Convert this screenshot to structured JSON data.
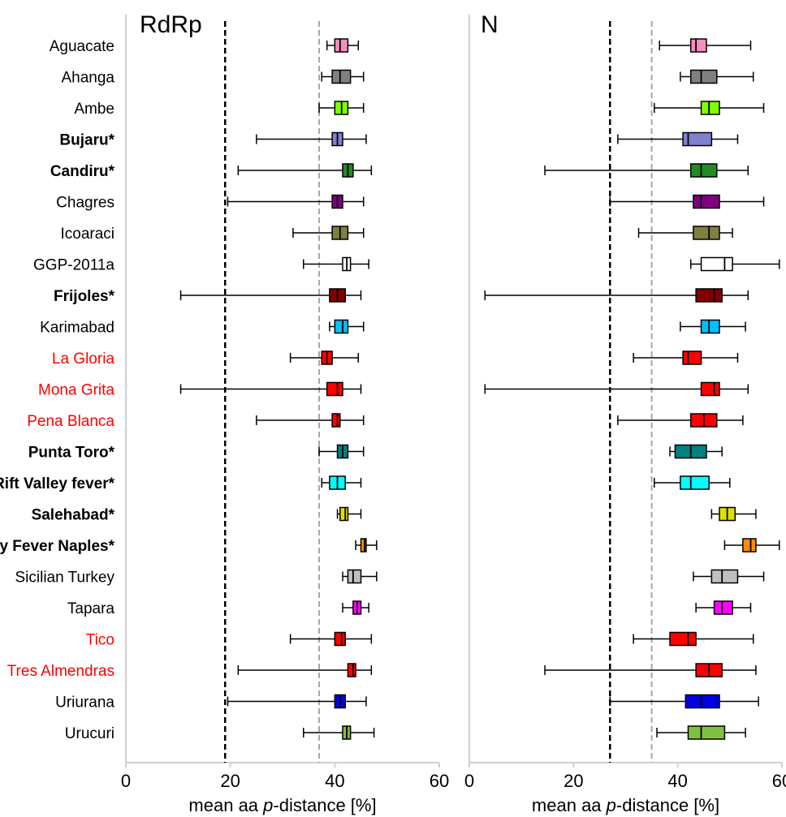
{
  "chart_data": [
    {
      "type": "boxplot",
      "title": "RdRp",
      "xlabel": "mean aa p-distance [%]",
      "xlabel_parts": [
        "mean aa ",
        "p",
        "-distance [%]"
      ],
      "xlim": [
        0,
        60
      ],
      "xticks": [
        "0",
        "20",
        "40",
        "60"
      ],
      "reference_lines": [
        {
          "x": 19,
          "style": "dashed",
          "color": "#000000"
        },
        {
          "x": 37,
          "style": "dashed",
          "color": "#a6a6a6"
        }
      ],
      "categories": [
        "Aguacate",
        "Ahanga",
        "Ambe",
        "Bujaru*",
        "Candiru*",
        "Chagres",
        "Icoaraci",
        "GGP-2011a",
        "Frijoles*",
        "Karimabad",
        "La Gloria",
        "Mona Grita",
        "Pena Blanca",
        "Punta Toro*",
        "Rift Valley fever*",
        "Salehabad*",
        "Sandfly Fever Naples*",
        "Sicilian Turkey",
        "Tapara",
        "Tico",
        "Tres Almendras",
        "Uriurana",
        "Urucuri"
      ],
      "boxes": [
        {
          "min": 38.5,
          "q1": 40.0,
          "median": 41.0,
          "q3": 42.5,
          "max": 44.5,
          "color": "#f48fc1"
        },
        {
          "min": 37.5,
          "q1": 39.5,
          "median": 41.0,
          "q3": 43.0,
          "max": 45.5,
          "color": "#808080"
        },
        {
          "min": 37.0,
          "q1": 40.0,
          "median": 41.3,
          "q3": 42.5,
          "max": 45.5,
          "color": "#80ff00"
        },
        {
          "min": 25.0,
          "q1": 39.5,
          "median": 40.5,
          "q3": 41.5,
          "max": 46.0,
          "color": "#8080d0"
        },
        {
          "min": 21.5,
          "q1": 41.5,
          "median": 42.5,
          "q3": 43.5,
          "max": 47.0,
          "color": "#228b22"
        },
        {
          "min": 19.5,
          "q1": 39.5,
          "median": 40.5,
          "q3": 41.5,
          "max": 45.5,
          "color": "#800080"
        },
        {
          "min": 32.0,
          "q1": 39.5,
          "median": 41.0,
          "q3": 42.5,
          "max": 45.5,
          "color": "#808040"
        },
        {
          "min": 34.0,
          "q1": 41.5,
          "median": 42.3,
          "q3": 43.0,
          "max": 46.5,
          "color": "#ffffff"
        },
        {
          "min": 10.5,
          "q1": 39.0,
          "median": 40.5,
          "q3": 42.0,
          "max": 45.0,
          "color": "#800000"
        },
        {
          "min": 39.0,
          "q1": 40.0,
          "median": 41.5,
          "q3": 42.5,
          "max": 45.5,
          "color": "#00bfff"
        },
        {
          "min": 31.5,
          "q1": 37.5,
          "median": 38.5,
          "q3": 39.5,
          "max": 44.5,
          "color": "#ff0000"
        },
        {
          "min": 10.5,
          "q1": 38.5,
          "median": 40.5,
          "q3": 41.5,
          "max": 45.0,
          "color": "#ff0000"
        },
        {
          "min": 25.0,
          "q1": 39.5,
          "median": 40.5,
          "q3": 41.0,
          "max": 45.5,
          "color": "#ff0000"
        },
        {
          "min": 37.0,
          "q1": 40.5,
          "median": 41.5,
          "q3": 42.5,
          "max": 45.5,
          "color": "#008080"
        },
        {
          "min": 37.5,
          "q1": 39.0,
          "median": 40.5,
          "q3": 42.0,
          "max": 45.0,
          "color": "#00ffff"
        },
        {
          "min": 40.5,
          "q1": 41.0,
          "median": 42.0,
          "q3": 42.5,
          "max": 45.0,
          "color": "#e0e000"
        },
        {
          "min": 44.0,
          "q1": 45.0,
          "median": 45.7,
          "q3": 46.0,
          "max": 48.0,
          "color": "#ff8c00"
        },
        {
          "min": 41.5,
          "q1": 42.5,
          "median": 43.5,
          "q3": 45.0,
          "max": 48.0,
          "color": "#c0c0c0"
        },
        {
          "min": 41.5,
          "q1": 43.5,
          "median": 44.3,
          "q3": 45.0,
          "max": 46.5,
          "color": "#ff00ff"
        },
        {
          "min": 31.5,
          "q1": 40.0,
          "median": 41.3,
          "q3": 42.0,
          "max": 47.0,
          "color": "#ff0000"
        },
        {
          "min": 21.5,
          "q1": 42.5,
          "median": 43.5,
          "q3": 44.0,
          "max": 47.0,
          "color": "#ff0000"
        },
        {
          "min": 19.5,
          "q1": 40.0,
          "median": 41.0,
          "q3": 42.0,
          "max": 46.0,
          "color": "#0000e0"
        },
        {
          "min": 34.0,
          "q1": 41.5,
          "median": 42.3,
          "q3": 43.0,
          "max": 47.5,
          "color": "#80c040"
        }
      ]
    },
    {
      "type": "boxplot",
      "title": "N",
      "xlabel": "mean aa p-distance [%]",
      "xlabel_parts": [
        "mean aa ",
        "p",
        "-distance [%]"
      ],
      "xlim": [
        0,
        60
      ],
      "xticks": [
        "0",
        "20",
        "40",
        "60"
      ],
      "reference_lines": [
        {
          "x": 27,
          "style": "dashed",
          "color": "#000000"
        },
        {
          "x": 35,
          "style": "dashed",
          "color": "#a6a6a6"
        }
      ],
      "categories": [
        "Aguacate",
        "Ahanga",
        "Ambe",
        "Bujaru*",
        "Candiru*",
        "Chagres",
        "Icoaraci",
        "GGP-2011a",
        "Frijoles*",
        "Karimabad",
        "La Gloria",
        "Mona Grita",
        "Pena Blanca",
        "Punta Toro*",
        "Rift Valley fever*",
        "Salehabad*",
        "Sandfly Fever Naples*",
        "Sicilian Turkey",
        "Tapara",
        "Tico",
        "Tres Almendras",
        "Uriurana",
        "Urucuri"
      ],
      "boxes": [
        {
          "min": 36.5,
          "q1": 42.5,
          "median": 43.5,
          "q3": 45.5,
          "max": 54.0,
          "color": "#f48fc1"
        },
        {
          "min": 40.5,
          "q1": 42.5,
          "median": 44.5,
          "q3": 47.5,
          "max": 54.5,
          "color": "#808080"
        },
        {
          "min": 35.5,
          "q1": 44.5,
          "median": 46.0,
          "q3": 48.0,
          "max": 56.5,
          "color": "#80ff00"
        },
        {
          "min": 28.5,
          "q1": 41.0,
          "median": 42.0,
          "q3": 46.5,
          "max": 51.5,
          "color": "#8080d0"
        },
        {
          "min": 14.5,
          "q1": 42.5,
          "median": 44.5,
          "q3": 47.5,
          "max": 53.5,
          "color": "#228b22"
        },
        {
          "min": 27.0,
          "q1": 43.0,
          "median": 44.5,
          "q3": 48.0,
          "max": 56.5,
          "color": "#800080"
        },
        {
          "min": 32.5,
          "q1": 43.0,
          "median": 46.0,
          "q3": 48.0,
          "max": 50.5,
          "color": "#808040"
        },
        {
          "min": 42.5,
          "q1": 44.5,
          "median": 49.0,
          "q3": 50.5,
          "max": 59.5,
          "color": "#ffffff"
        },
        {
          "min": 3.0,
          "q1": 43.5,
          "median": 47.0,
          "q3": 48.5,
          "max": 53.5,
          "color": "#800000"
        },
        {
          "min": 40.5,
          "q1": 44.5,
          "median": 46.0,
          "q3": 48.0,
          "max": 53.0,
          "color": "#00bfff"
        },
        {
          "min": 31.5,
          "q1": 41.0,
          "median": 42.0,
          "q3": 44.5,
          "max": 51.5,
          "color": "#ff0000"
        },
        {
          "min": 3.0,
          "q1": 44.5,
          "median": 47.0,
          "q3": 48.0,
          "max": 53.5,
          "color": "#ff0000"
        },
        {
          "min": 28.5,
          "q1": 42.5,
          "median": 45.0,
          "q3": 47.5,
          "max": 52.5,
          "color": "#ff0000"
        },
        {
          "min": 38.5,
          "q1": 39.5,
          "median": 42.5,
          "q3": 45.5,
          "max": 48.5,
          "color": "#008080"
        },
        {
          "min": 35.5,
          "q1": 40.5,
          "median": 42.5,
          "q3": 46.0,
          "max": 50.0,
          "color": "#00ffff"
        },
        {
          "min": 46.5,
          "q1": 48.0,
          "median": 49.5,
          "q3": 51.0,
          "max": 55.0,
          "color": "#e0e000"
        },
        {
          "min": 49.0,
          "q1": 52.5,
          "median": 54.0,
          "q3": 55.0,
          "max": 59.5,
          "color": "#ff8c00"
        },
        {
          "min": 43.0,
          "q1": 46.5,
          "median": 48.5,
          "q3": 51.5,
          "max": 56.5,
          "color": "#c0c0c0"
        },
        {
          "min": 43.5,
          "q1": 47.0,
          "median": 48.5,
          "q3": 50.5,
          "max": 54.0,
          "color": "#ff00ff"
        },
        {
          "min": 31.5,
          "q1": 38.5,
          "median": 42.0,
          "q3": 43.5,
          "max": 54.5,
          "color": "#ff0000"
        },
        {
          "min": 14.5,
          "q1": 43.5,
          "median": 46.0,
          "q3": 48.5,
          "max": 55.0,
          "color": "#ff0000"
        },
        {
          "min": 27.0,
          "q1": 41.5,
          "median": 44.5,
          "q3": 48.0,
          "max": 55.5,
          "color": "#0000e0"
        },
        {
          "min": 36.0,
          "q1": 42.0,
          "median": 44.5,
          "q3": 49.0,
          "max": 53.0,
          "color": "#80c040"
        }
      ]
    }
  ],
  "label_styles": [
    {
      "color": "#000000",
      "bold": false
    },
    {
      "color": "#000000",
      "bold": false
    },
    {
      "color": "#000000",
      "bold": false
    },
    {
      "color": "#000000",
      "bold": true
    },
    {
      "color": "#000000",
      "bold": true
    },
    {
      "color": "#000000",
      "bold": false
    },
    {
      "color": "#000000",
      "bold": false
    },
    {
      "color": "#000000",
      "bold": false
    },
    {
      "color": "#000000",
      "bold": true
    },
    {
      "color": "#000000",
      "bold": false
    },
    {
      "color": "#ff0000",
      "bold": false
    },
    {
      "color": "#ff0000",
      "bold": false
    },
    {
      "color": "#ff0000",
      "bold": false
    },
    {
      "color": "#000000",
      "bold": true
    },
    {
      "color": "#000000",
      "bold": true
    },
    {
      "color": "#000000",
      "bold": true
    },
    {
      "color": "#000000",
      "bold": true
    },
    {
      "color": "#000000",
      "bold": false
    },
    {
      "color": "#000000",
      "bold": false
    },
    {
      "color": "#ff0000",
      "bold": false
    },
    {
      "color": "#ff0000",
      "bold": false
    },
    {
      "color": "#000000",
      "bold": false
    },
    {
      "color": "#000000",
      "bold": false
    }
  ]
}
